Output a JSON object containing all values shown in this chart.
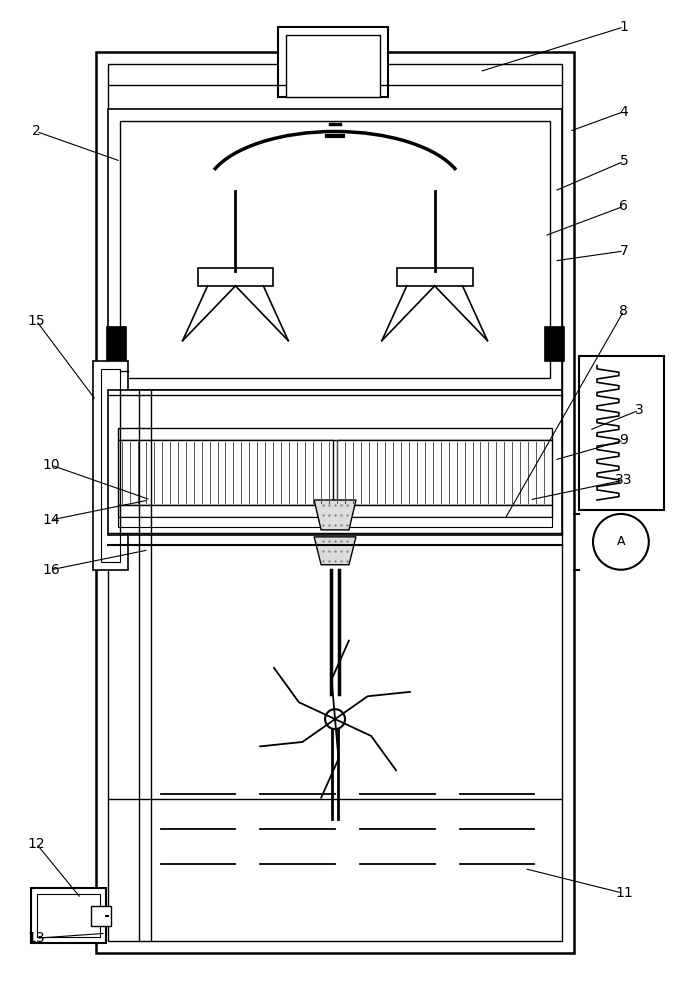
{
  "bg_color": "#ffffff",
  "line_color": "#000000",
  "fig_width": 6.96,
  "fig_height": 10.0
}
